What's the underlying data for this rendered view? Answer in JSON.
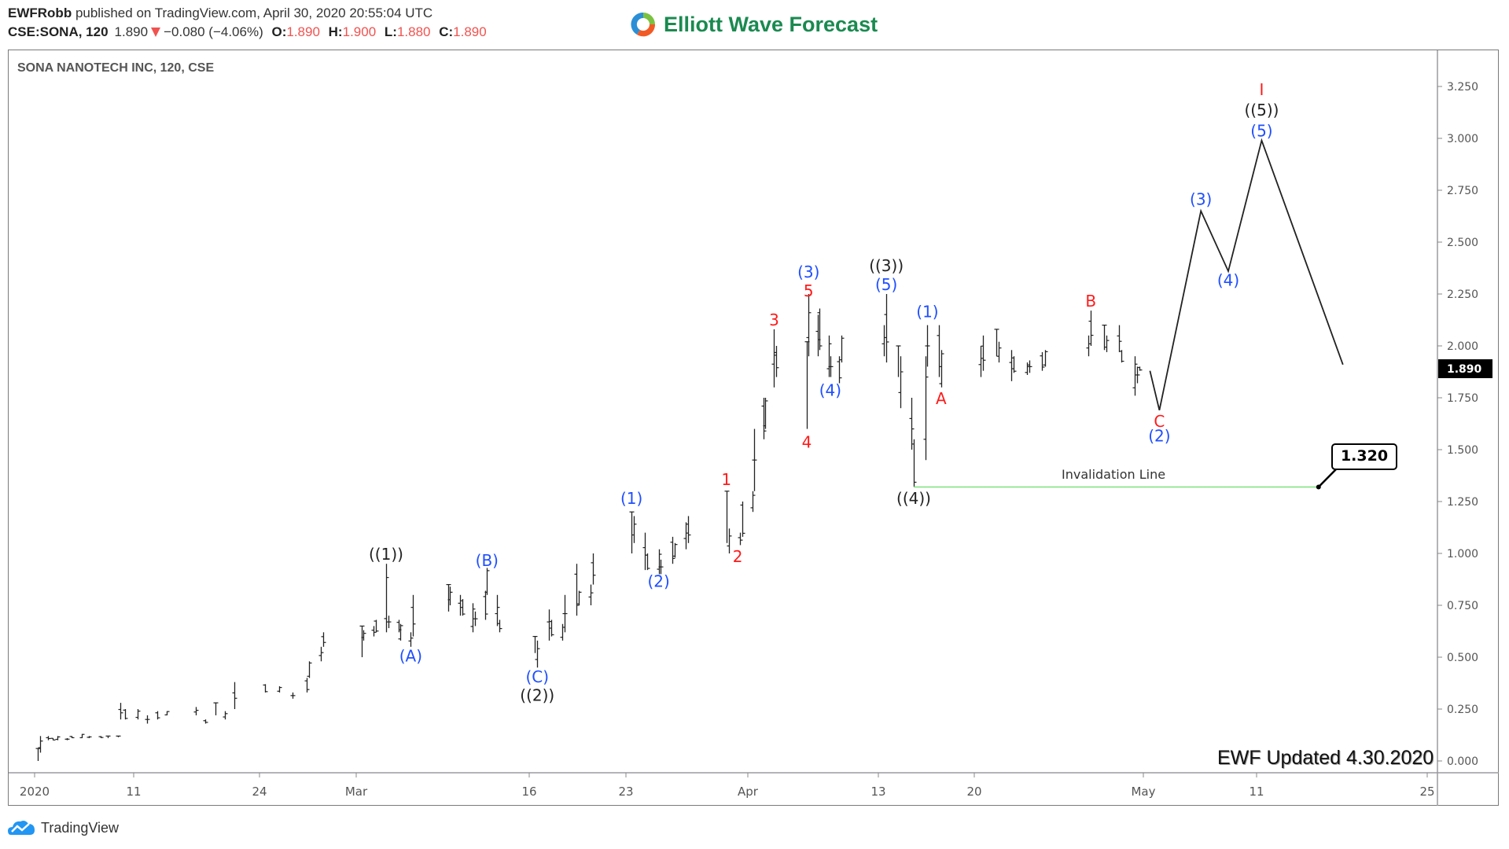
{
  "header": {
    "author": "EWFRobb",
    "published_text": "published on TradingView.com, April 30, 2020 20:55:04 UTC",
    "symbol": "CSE:SONA, 120",
    "last": "1.890",
    "change": "−0.080 (−4.06%)",
    "open_label": "O:",
    "open": "1.890",
    "high_label": "H:",
    "high": "1.900",
    "low_label": "L:",
    "low": "1.880",
    "close_label": "C:",
    "close": "1.890",
    "down_color": "#ef5350"
  },
  "brand": {
    "name": "Elliott Wave Forecast",
    "color": "#1a8a50"
  },
  "footer": {
    "tradingview": "TradingView",
    "updated": "EWF Updated 4.30.2020"
  },
  "chart_data": {
    "type": "bar",
    "title": "SONA NANOTECH INC, 120, CSE",
    "ylim": [
      0,
      3.35
    ],
    "y_ticks": [
      "0.000",
      "0.250",
      "0.500",
      "0.750",
      "1.000",
      "1.250",
      "1.500",
      "1.750",
      "2.000",
      "2.250",
      "2.500",
      "2.750",
      "3.000",
      "3.250"
    ],
    "x_ticks": [
      {
        "label": "2020",
        "date": "2020-01-01"
      },
      {
        "label": "11",
        "date": "2020-02-11"
      },
      {
        "label": "24",
        "date": "2020-02-24"
      },
      {
        "label": "Mar",
        "date": "2020-03-02"
      },
      {
        "label": "16",
        "date": "2020-03-16"
      },
      {
        "label": "23",
        "date": "2020-03-23"
      },
      {
        "label": "Apr",
        "date": "2020-04-01"
      },
      {
        "label": "13",
        "date": "2020-04-13"
      },
      {
        "label": "20",
        "date": "2020-04-20"
      },
      {
        "label": "May",
        "date": "2020-05-01"
      },
      {
        "label": "11",
        "date": "2020-05-11"
      },
      {
        "label": "25",
        "date": "2020-05-25"
      }
    ],
    "current_price": "1.890",
    "bars_columns": [
      "time",
      "high",
      "low"
    ],
    "bars": [
      [
        "2020-01-02T10",
        0.06,
        0.0
      ],
      [
        "2020-01-03T10",
        0.12,
        0.04
      ],
      [
        "2020-01-06T10",
        0.12,
        0.1
      ],
      [
        "2020-01-08T10",
        0.11,
        0.1
      ],
      [
        "2020-01-10T10",
        0.12,
        0.1
      ],
      [
        "2020-01-14T10",
        0.11,
        0.1
      ],
      [
        "2020-01-16T10",
        0.12,
        0.11
      ],
      [
        "2020-01-20T10",
        0.13,
        0.11
      ],
      [
        "2020-01-23T10",
        0.12,
        0.11
      ],
      [
        "2020-01-28T10",
        0.12,
        0.11
      ],
      [
        "2020-01-31T10",
        0.12,
        0.11
      ],
      [
        "2020-02-04T10",
        0.12,
        0.12
      ],
      [
        "2020-02-05T10",
        0.28,
        0.2
      ],
      [
        "2020-02-07T10",
        0.25,
        0.2
      ],
      [
        "2020-02-11T10",
        0.25,
        0.2
      ],
      [
        "2020-02-12T10",
        0.22,
        0.18
      ],
      [
        "2020-02-13T10",
        0.24,
        0.2
      ],
      [
        "2020-02-14T10",
        0.24,
        0.22
      ],
      [
        "2020-02-17T10",
        0.26,
        0.22
      ],
      [
        "2020-02-18T10",
        0.2,
        0.18
      ],
      [
        "2020-02-19T10",
        0.28,
        0.22
      ],
      [
        "2020-02-20T10",
        0.24,
        0.2
      ],
      [
        "2020-02-21T10",
        0.38,
        0.25
      ],
      [
        "2020-02-24T10",
        0.37,
        0.33
      ],
      [
        "2020-02-25T10",
        0.36,
        0.33
      ],
      [
        "2020-02-26T10",
        0.33,
        0.3
      ],
      [
        "2020-02-27T10",
        0.4,
        0.33
      ],
      [
        "2020-02-27T14",
        0.48,
        0.4
      ],
      [
        "2020-02-28T10",
        0.55,
        0.48
      ],
      [
        "2020-02-28T14",
        0.62,
        0.55
      ],
      [
        "2020-03-02T10",
        0.65,
        0.5
      ],
      [
        "2020-03-02T14",
        0.63,
        0.58
      ],
      [
        "2020-03-03T10",
        0.65,
        0.6
      ],
      [
        "2020-03-03T14",
        0.68,
        0.62
      ],
      [
        "2020-03-04T10",
        0.95,
        0.62
      ],
      [
        "2020-03-04T14",
        0.7,
        0.64
      ],
      [
        "2020-03-05T10",
        0.68,
        0.62
      ],
      [
        "2020-03-05T14",
        0.66,
        0.58
      ],
      [
        "2020-03-06T10",
        0.62,
        0.55
      ],
      [
        "2020-03-06T14",
        0.8,
        0.6
      ],
      [
        "2020-03-09T10",
        0.85,
        0.72
      ],
      [
        "2020-03-09T14",
        0.84,
        0.75
      ],
      [
        "2020-03-10T10",
        0.8,
        0.7
      ],
      [
        "2020-03-10T14",
        0.78,
        0.7
      ],
      [
        "2020-03-11T10",
        0.76,
        0.62
      ],
      [
        "2020-03-11T14",
        0.72,
        0.65
      ],
      [
        "2020-03-12T10",
        0.82,
        0.68
      ],
      [
        "2020-03-12T14",
        0.93,
        0.8
      ],
      [
        "2020-03-13T10",
        0.8,
        0.65
      ],
      [
        "2020-03-13T14",
        0.68,
        0.62
      ],
      [
        "2020-03-16T10",
        0.6,
        0.52
      ],
      [
        "2020-03-16T14",
        0.58,
        0.45
      ],
      [
        "2020-03-17T10",
        0.73,
        0.58
      ],
      [
        "2020-03-17T14",
        0.68,
        0.6
      ],
      [
        "2020-03-18T10",
        0.66,
        0.58
      ],
      [
        "2020-03-18T14",
        0.8,
        0.62
      ],
      [
        "2020-03-19T10",
        0.95,
        0.7
      ],
      [
        "2020-03-19T14",
        0.82,
        0.75
      ],
      [
        "2020-03-20T10",
        0.85,
        0.75
      ],
      [
        "2020-03-20T14",
        1.0,
        0.85
      ],
      [
        "2020-03-23T10",
        1.2,
        1.0
      ],
      [
        "2020-03-23T14",
        1.18,
        1.05
      ],
      [
        "2020-03-24T10",
        1.1,
        0.92
      ],
      [
        "2020-03-24T14",
        1.0,
        0.92
      ],
      [
        "2020-03-25T10",
        1.02,
        0.9
      ],
      [
        "2020-03-25T14",
        0.97,
        0.9
      ],
      [
        "2020-03-26T10",
        1.08,
        0.95
      ],
      [
        "2020-03-26T14",
        1.05,
        0.98
      ],
      [
        "2020-03-27T10",
        1.15,
        1.02
      ],
      [
        "2020-03-27T14",
        1.18,
        1.05
      ],
      [
        "2020-03-30T10",
        1.3,
        1.05
      ],
      [
        "2020-03-30T14",
        1.12,
        1.0
      ],
      [
        "2020-03-31T10",
        1.1,
        1.04
      ],
      [
        "2020-03-31T14",
        1.25,
        1.08
      ],
      [
        "2020-04-01T10",
        1.3,
        1.2
      ],
      [
        "2020-04-01T14",
        1.6,
        1.3
      ],
      [
        "2020-04-02T10",
        1.75,
        1.55
      ],
      [
        "2020-04-02T14",
        1.75,
        1.6
      ],
      [
        "2020-04-03T10",
        2.08,
        1.8
      ],
      [
        "2020-04-03T14",
        2.0,
        1.85
      ],
      [
        "2020-04-06T10",
        2.02,
        1.6
      ],
      [
        "2020-04-06T14",
        2.25,
        1.95
      ],
      [
        "2020-04-07T10",
        2.15,
        1.95
      ],
      [
        "2020-04-07T14",
        2.18,
        1.98
      ],
      [
        "2020-04-08T10",
        2.05,
        1.85
      ],
      [
        "2020-04-08T14",
        1.95,
        1.85
      ],
      [
        "2020-04-09T10",
        1.95,
        1.82
      ],
      [
        "2020-04-09T14",
        2.05,
        1.92
      ],
      [
        "2020-04-13T10",
        2.1,
        1.95
      ],
      [
        "2020-04-13T14",
        2.25,
        1.92
      ],
      [
        "2020-04-14T10",
        2.0,
        1.85
      ],
      [
        "2020-04-14T14",
        1.95,
        1.7
      ],
      [
        "2020-04-15T10",
        1.75,
        1.5
      ],
      [
        "2020-04-15T14",
        1.55,
        1.32
      ],
      [
        "2020-04-16T10",
        1.95,
        1.45
      ],
      [
        "2020-04-16T14",
        2.1,
        1.9
      ],
      [
        "2020-04-17T10",
        2.1,
        1.85
      ],
      [
        "2020-04-17T14",
        1.98,
        1.8
      ],
      [
        "2020-04-20T10",
        2.0,
        1.85
      ],
      [
        "2020-04-20T14",
        2.05,
        1.88
      ],
      [
        "2020-04-21T10",
        2.08,
        1.95
      ],
      [
        "2020-04-21T14",
        2.02,
        1.92
      ],
      [
        "2020-04-22T10",
        1.98,
        1.83
      ],
      [
        "2020-04-22T14",
        1.95,
        1.87
      ],
      [
        "2020-04-23T10",
        1.92,
        1.86
      ],
      [
        "2020-04-23T14",
        1.93,
        1.87
      ],
      [
        "2020-04-24T10",
        1.97,
        1.88
      ],
      [
        "2020-04-24T14",
        1.98,
        1.9
      ],
      [
        "2020-04-27T10",
        2.05,
        1.95
      ],
      [
        "2020-04-27T14",
        2.17,
        2.0
      ],
      [
        "2020-04-28T10",
        2.1,
        1.98
      ],
      [
        "2020-04-28T14",
        2.05,
        1.97
      ],
      [
        "2020-04-29T10",
        2.1,
        1.97
      ],
      [
        "2020-04-29T14",
        1.98,
        1.92
      ],
      [
        "2020-04-30T10",
        1.95,
        1.76
      ],
      [
        "2020-04-30T14",
        1.9,
        1.82
      ],
      [
        "2020-04-30T18",
        1.9,
        1.88
      ]
    ],
    "projection": [
      [
        "2020-05-01T14",
        1.88
      ],
      [
        "2020-05-02T10",
        1.69
      ],
      [
        "2020-05-06T02",
        2.65
      ],
      [
        "2020-05-08T12",
        2.36
      ],
      [
        "2020-05-11T10",
        2.99
      ],
      [
        "2020-05-18T02",
        1.91
      ]
    ],
    "invalidation": {
      "label": "Invalidation Line",
      "price": 1.32,
      "price_label": "1.320",
      "from": "2020-04-15T14",
      "to": "2020-05-16T02",
      "color": "#7ee07e"
    },
    "wave_colors": {
      "black": "#222222",
      "blue": "#1f4fff",
      "red": "#ff1a1a"
    },
    "wave_labels": [
      {
        "text": "((1))",
        "color": "black",
        "date": "2020-03-04T10",
        "price": 0.99
      },
      {
        "text": "(A)",
        "color": "blue",
        "date": "2020-03-06T10",
        "price": 0.5
      },
      {
        "text": "(B)",
        "color": "blue",
        "date": "2020-03-12T14",
        "price": 0.96
      },
      {
        "text": "(C)",
        "color": "blue",
        "date": "2020-03-16T14",
        "price": 0.4
      },
      {
        "text": "((2))",
        "color": "black",
        "date": "2020-03-16T14",
        "price": 0.31
      },
      {
        "text": "(1)",
        "color": "blue",
        "date": "2020-03-23T10",
        "price": 1.26
      },
      {
        "text": "(2)",
        "color": "blue",
        "date": "2020-03-25T10",
        "price": 0.86
      },
      {
        "text": "1",
        "color": "red",
        "date": "2020-03-30T10",
        "price": 1.35
      },
      {
        "text": "2",
        "color": "red",
        "date": "2020-03-31T06",
        "price": 0.98
      },
      {
        "text": "3",
        "color": "red",
        "date": "2020-04-03T10",
        "price": 2.12
      },
      {
        "text": "4",
        "color": "red",
        "date": "2020-04-06T10",
        "price": 1.53
      },
      {
        "text": "5",
        "color": "red",
        "date": "2020-04-06T14",
        "price": 2.26
      },
      {
        "text": "(3)",
        "color": "blue",
        "date": "2020-04-06T14",
        "price": 2.35
      },
      {
        "text": "(4)",
        "color": "blue",
        "date": "2020-04-08T14",
        "price": 1.78
      },
      {
        "text": "((3))",
        "color": "black",
        "date": "2020-04-13T14",
        "price": 2.38
      },
      {
        "text": "(5)",
        "color": "blue",
        "date": "2020-04-13T14",
        "price": 2.29
      },
      {
        "text": "((4))",
        "color": "black",
        "date": "2020-04-15T14",
        "price": 1.26
      },
      {
        "text": "(1)",
        "color": "blue",
        "date": "2020-04-16T14",
        "price": 2.16
      },
      {
        "text": "A",
        "color": "red",
        "date": "2020-04-17T14",
        "price": 1.74
      },
      {
        "text": "B",
        "color": "red",
        "date": "2020-04-27T14",
        "price": 2.21
      },
      {
        "text": "C",
        "color": "red",
        "date": "2020-05-02T10",
        "price": 1.63
      },
      {
        "text": "(2)",
        "color": "blue",
        "date": "2020-05-02T10",
        "price": 1.56
      },
      {
        "text": "(3)",
        "color": "blue",
        "date": "2020-05-06T02",
        "price": 2.7
      },
      {
        "text": "(4)",
        "color": "blue",
        "date": "2020-05-08T12",
        "price": 2.31
      },
      {
        "text": "(5)",
        "color": "blue",
        "date": "2020-05-11T10",
        "price": 3.03
      },
      {
        "text": "((5))",
        "color": "black",
        "date": "2020-05-11T10",
        "price": 3.13
      },
      {
        "text": "I",
        "color": "red",
        "date": "2020-05-11T10",
        "price": 3.23
      }
    ]
  }
}
